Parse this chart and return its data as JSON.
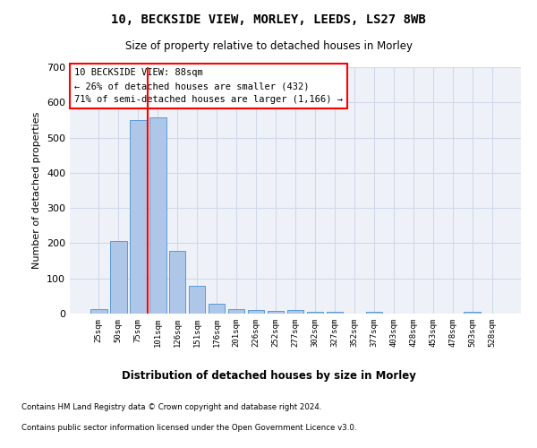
{
  "title": "10, BECKSIDE VIEW, MORLEY, LEEDS, LS27 8WB",
  "subtitle": "Size of property relative to detached houses in Morley",
  "xlabel": "Distribution of detached houses by size in Morley",
  "ylabel": "Number of detached properties",
  "categories": [
    "25sqm",
    "50sqm",
    "75sqm",
    "101sqm",
    "126sqm",
    "151sqm",
    "176sqm",
    "201sqm",
    "226sqm",
    "252sqm",
    "277sqm",
    "302sqm",
    "327sqm",
    "352sqm",
    "377sqm",
    "403sqm",
    "428sqm",
    "453sqm",
    "478sqm",
    "503sqm",
    "528sqm"
  ],
  "values": [
    13,
    205,
    550,
    557,
    178,
    78,
    28,
    13,
    10,
    8,
    10,
    6,
    5,
    0,
    5,
    0,
    0,
    0,
    0,
    5,
    0
  ],
  "bar_color": "#aec6e8",
  "bar_edge_color": "#5b9bd5",
  "grid_color": "#d0d8e8",
  "background_color": "#eef2f8",
  "annotation_box_text": "10 BECKSIDE VIEW: 88sqm\n← 26% of detached houses are smaller (432)\n71% of semi-detached houses are larger (1,166) →",
  "ylim": [
    0,
    700
  ],
  "yticks": [
    0,
    100,
    200,
    300,
    400,
    500,
    600,
    700
  ],
  "footnote1": "Contains HM Land Registry data © Crown copyright and database right 2024.",
  "footnote2": "Contains public sector information licensed under the Open Government Licence v3.0."
}
